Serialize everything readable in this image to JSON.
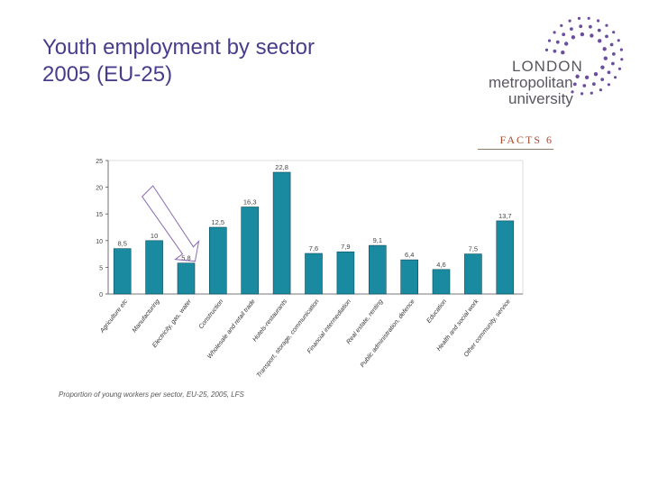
{
  "slide": {
    "title_line1": "Youth employment by sector",
    "title_line2": "2005 (EU-25)",
    "title_color": "#4a3c8c"
  },
  "logo": {
    "line1": "LONDON",
    "line2": "metropolitan",
    "line3": "university",
    "dot_color": "#6b4f9e"
  },
  "facts_label": "FACTS 6",
  "source_note": "Proportion of young workers per sector, EU-25, 2005, LFS",
  "chart_data": {
    "type": "bar",
    "categories": [
      "Agriculture etc",
      "Manufacturing",
      "Electricity, gas, water",
      "Construction",
      "Wholesale and retail trade",
      "Hotels-restaurants",
      "Transport, storage, communication",
      "Financial intermediation",
      "Real estate, renting",
      "Public administration, defence",
      "Education",
      "Health and social work",
      "Other community, service"
    ],
    "values": [
      8.5,
      10,
      5.8,
      12.5,
      16.3,
      22.8,
      7.6,
      7.9,
      9.1,
      6.4,
      4.6,
      7.5,
      13.7
    ],
    "data_labels": [
      "8,5",
      "10",
      "5,8",
      "12,5",
      "16,3",
      "22,8",
      "7,6",
      "7,9",
      "9,1",
      "6,4",
      "4,6",
      "7,5",
      "13,7"
    ],
    "yticks": [
      0,
      5,
      10,
      15,
      20,
      25
    ],
    "ylim": [
      0,
      25
    ],
    "bar_color": "#1a8aa0",
    "highlight_color": "#8a6ab0",
    "highlight_index": 2,
    "grid": false,
    "legend": "none"
  }
}
